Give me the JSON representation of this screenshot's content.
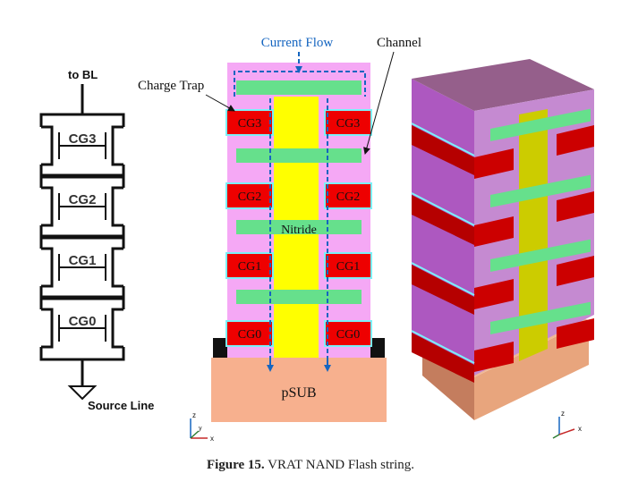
{
  "circuit": {
    "top_label": "to BL",
    "bottom_label": "Source Line",
    "cells": [
      "CG3",
      "CG2",
      "CG1",
      "CG0"
    ]
  },
  "cross_section": {
    "current_flow": "Current Flow",
    "channel": "Channel",
    "charge_trap": "Charge Trap",
    "nitride": "Nitride",
    "substrate": "pSUB",
    "left_gates": [
      "CG3",
      "CG2",
      "CG1",
      "CG0"
    ],
    "right_gates": [
      "CG3",
      "CG2",
      "CG1",
      "CG0"
    ]
  },
  "axes": {
    "z": "z",
    "x": "x",
    "y": "y"
  },
  "caption": {
    "label": "Figure 15.",
    "text": "VRAT NAND Flash string."
  },
  "colors": {
    "gate": "#ee0000",
    "charge_trap": "#f5a8f5",
    "channel": "#ffff00",
    "nitride": "#66e08c",
    "oxide": "#7cf0f8",
    "substrate": "#f7b08e",
    "current_flow": "#1565c0"
  }
}
